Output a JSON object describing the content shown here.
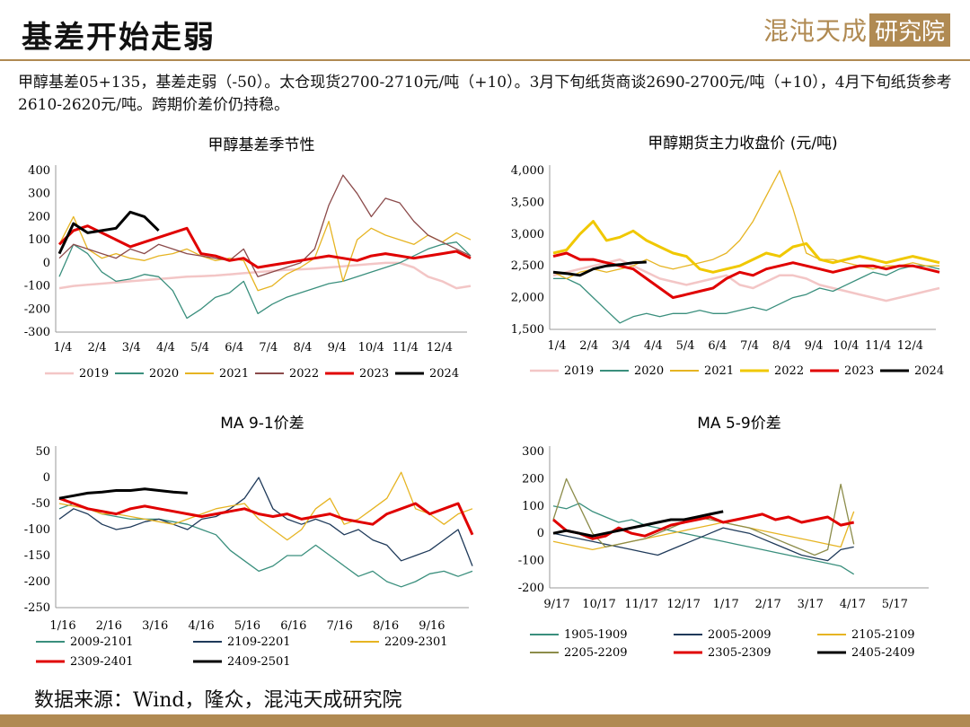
{
  "header": {
    "title": "基差开始走弱",
    "logo_text": "混沌天成",
    "logo_box": "研究院"
  },
  "description": "甲醇基差05+135，基差走弱（-50）。太仓现货2700-2710元/吨（+10）。3月下旬纸货商谈2690-2700元/吨（+10），4月下旬纸货参考2610-2620元/吨。跨期价差价仍持稳。",
  "source": "数据来源：Wind，隆众，混沌天成研究院",
  "colors": {
    "accent": "#b08a52"
  },
  "chart_data": [
    {
      "type": "line",
      "title": "甲醇基差季节性",
      "x_ticks": [
        "1/4",
        "2/4",
        "3/4",
        "4/4",
        "5/4",
        "6/4",
        "7/4",
        "8/4",
        "9/4",
        "10/4",
        "11/4",
        "12/4"
      ],
      "y_ticks": [
        "400",
        "300",
        "200",
        "100",
        "0",
        "-100",
        "-200",
        "-300"
      ],
      "ylim": [
        -300,
        400
      ],
      "grid": false,
      "legend": "bottom",
      "series": [
        {
          "name": "2019",
          "color": "#f3c6c6",
          "width": 2.5,
          "values": [
            -110,
            -100,
            -95,
            -90,
            -85,
            -80,
            -75,
            -70,
            -65,
            -60,
            -58,
            -55,
            -50,
            -45,
            -40,
            -35,
            -30,
            -28,
            -25,
            -20,
            -15,
            -10,
            -5,
            0,
            0,
            -20,
            -60,
            -80,
            -110,
            -100
          ]
        },
        {
          "name": "2020",
          "color": "#3a8f7d",
          "width": 1.3,
          "values": [
            -60,
            80,
            40,
            -40,
            -80,
            -70,
            -50,
            -60,
            -120,
            -240,
            -200,
            -150,
            -130,
            -80,
            -220,
            -180,
            -150,
            -130,
            -110,
            -90,
            -80,
            -60,
            -40,
            -20,
            0,
            30,
            60,
            80,
            90,
            30
          ]
        },
        {
          "name": "2021",
          "color": "#e6b422",
          "width": 1.3,
          "values": [
            80,
            200,
            60,
            20,
            40,
            20,
            10,
            30,
            40,
            60,
            30,
            10,
            20,
            10,
            -120,
            -100,
            -50,
            -20,
            20,
            180,
            -80,
            100,
            150,
            120,
            100,
            80,
            120,
            90,
            130,
            100
          ]
        },
        {
          "name": "2022",
          "color": "#8b4a4a",
          "width": 1.3,
          "values": [
            20,
            80,
            60,
            40,
            20,
            60,
            40,
            80,
            60,
            40,
            30,
            20,
            10,
            60,
            -60,
            -40,
            -20,
            0,
            60,
            250,
            380,
            300,
            200,
            280,
            260,
            180,
            120,
            90,
            60,
            30
          ]
        },
        {
          "name": "2023",
          "color": "#e00000",
          "width": 3,
          "values": [
            80,
            140,
            160,
            130,
            100,
            70,
            90,
            110,
            130,
            150,
            40,
            30,
            10,
            20,
            -20,
            -10,
            0,
            10,
            20,
            30,
            20,
            10,
            30,
            40,
            30,
            20,
            30,
            40,
            50,
            20
          ]
        },
        {
          "name": "2024",
          "color": "#000000",
          "width": 3,
          "values": [
            40,
            170,
            130,
            140,
            150,
            220,
            200,
            140
          ]
        }
      ]
    },
    {
      "type": "line",
      "title": "甲醇期货主力收盘价 (元/吨)",
      "x_ticks": [
        "1/4",
        "2/4",
        "3/4",
        "4/4",
        "5/4",
        "6/4",
        "7/4",
        "8/4",
        "9/4",
        "10/4",
        "11/4",
        "12/4"
      ],
      "y_ticks": [
        "4,000",
        "3,500",
        "3,000",
        "2,500",
        "2,000",
        "1,500"
      ],
      "ylim": [
        1500,
        4000
      ],
      "grid": false,
      "legend": "bottom",
      "series": [
        {
          "name": "2019",
          "color": "#f3c6c6",
          "width": 2.5,
          "values": [
            2350,
            2400,
            2450,
            2500,
            2550,
            2600,
            2500,
            2400,
            2300,
            2250,
            2200,
            2250,
            2300,
            2350,
            2200,
            2150,
            2250,
            2350,
            2350,
            2300,
            2200,
            2150,
            2100,
            2050,
            2000,
            1950,
            2000,
            2050,
            2100,
            2150
          ]
        },
        {
          "name": "2020",
          "color": "#3a8f7d",
          "width": 1.3,
          "values": [
            2300,
            2300,
            2200,
            2000,
            1800,
            1600,
            1700,
            1750,
            1700,
            1750,
            1750,
            1800,
            1750,
            1750,
            1800,
            1850,
            1800,
            1900,
            2000,
            2050,
            2150,
            2100,
            2200,
            2300,
            2400,
            2350,
            2450,
            2500,
            2500,
            2450
          ]
        },
        {
          "name": "2021",
          "color": "#e6b422",
          "width": 1.3,
          "values": [
            2400,
            2300,
            2400,
            2450,
            2400,
            2450,
            2500,
            2600,
            2500,
            2450,
            2500,
            2550,
            2600,
            2700,
            2900,
            3200,
            3600,
            4000,
            3400,
            2700,
            2600,
            2600,
            2550,
            2500,
            2450,
            2500,
            2500,
            2550,
            2500,
            2500
          ]
        },
        {
          "name": "2022",
          "color": "#f0c800",
          "width": 3,
          "values": [
            2700,
            2750,
            3000,
            3200,
            2900,
            2950,
            3050,
            2900,
            2800,
            2700,
            2650,
            2450,
            2400,
            2450,
            2500,
            2600,
            2700,
            2650,
            2800,
            2850,
            2600,
            2550,
            2600,
            2650,
            2600,
            2550,
            2600,
            2650,
            2600,
            2550
          ]
        },
        {
          "name": "2023",
          "color": "#e00000",
          "width": 3,
          "values": [
            2650,
            2700,
            2600,
            2600,
            2550,
            2500,
            2450,
            2300,
            2150,
            2000,
            2050,
            2100,
            2150,
            2300,
            2400,
            2350,
            2450,
            2500,
            2550,
            2500,
            2450,
            2400,
            2450,
            2500,
            2500,
            2450,
            2500,
            2500,
            2450,
            2400
          ]
        },
        {
          "name": "2024",
          "color": "#000000",
          "width": 3,
          "values": [
            2400,
            2380,
            2350,
            2450,
            2500,
            2520,
            2550,
            2560
          ]
        }
      ]
    },
    {
      "type": "line",
      "title": "MA 9-1价差",
      "x_ticks": [
        "1/16",
        "2/16",
        "3/16",
        "4/16",
        "5/16",
        "6/16",
        "7/16",
        "8/16",
        "9/16"
      ],
      "y_ticks": [
        "50",
        "0",
        "-50",
        "-100",
        "-150",
        "-200",
        "-250"
      ],
      "ylim": [
        -250,
        50
      ],
      "grid": false,
      "legend": "bottom",
      "series": [
        {
          "name": "2009-2101",
          "color": "#3a8f7d",
          "width": 1.3,
          "values": [
            -60,
            -50,
            -60,
            -70,
            -75,
            -80,
            -80,
            -80,
            -85,
            -90,
            -100,
            -110,
            -140,
            -160,
            -180,
            -170,
            -150,
            -150,
            -130,
            -150,
            -170,
            -190,
            -180,
            -200,
            -210,
            -200,
            -185,
            -180,
            -190,
            -180
          ]
        },
        {
          "name": "2109-2201",
          "color": "#1f3a5a",
          "width": 1.3,
          "values": [
            -80,
            -60,
            -70,
            -90,
            -100,
            -95,
            -85,
            -80,
            -90,
            -100,
            -80,
            -75,
            -60,
            -40,
            0,
            -60,
            -80,
            -90,
            -80,
            -90,
            -110,
            -100,
            -120,
            -130,
            -160,
            -150,
            -140,
            -120,
            -100,
            -170
          ]
        },
        {
          "name": "2209-2301",
          "color": "#e6b422",
          "width": 1.3,
          "values": [
            -50,
            -55,
            -60,
            -70,
            -70,
            -75,
            -80,
            -85,
            -90,
            -80,
            -70,
            -60,
            -55,
            -50,
            -80,
            -100,
            -120,
            -100,
            -60,
            -40,
            -90,
            -80,
            -60,
            -40,
            10,
            -60,
            -70,
            -90,
            -70,
            -60
          ]
        },
        {
          "name": "2309-2401",
          "color": "#e00000",
          "width": 3,
          "values": [
            -40,
            -50,
            -60,
            -65,
            -70,
            -60,
            -55,
            -60,
            -65,
            -70,
            -75,
            -70,
            -65,
            -60,
            -70,
            -75,
            -70,
            -80,
            -75,
            -70,
            -80,
            -85,
            -90,
            -70,
            -60,
            -50,
            -70,
            -60,
            -50,
            -110
          ]
        },
        {
          "name": "2409-2501",
          "color": "#000000",
          "width": 3,
          "values": [
            -40,
            -35,
            -30,
            -28,
            -25,
            -25,
            -22,
            -25,
            -28,
            -30
          ]
        }
      ]
    },
    {
      "type": "line",
      "title": "MA 5-9价差",
      "x_ticks": [
        "9/17",
        "10/17",
        "11/17",
        "12/17",
        "1/17",
        "2/17",
        "3/17",
        "4/17",
        "5/17"
      ],
      "y_ticks": [
        "300",
        "200",
        "100",
        "0",
        "-100",
        "-200"
      ],
      "ylim": [
        -200,
        300
      ],
      "grid": false,
      "legend": "bottom",
      "series": [
        {
          "name": "1905-1909",
          "color": "#3a8f7d",
          "width": 1.3,
          "values": [
            100,
            90,
            110,
            80,
            60,
            40,
            50,
            30,
            20,
            10,
            0,
            -10,
            -20,
            -30,
            -40,
            -50,
            -60,
            -70,
            -80,
            -90,
            -100,
            -110,
            -120,
            -150
          ]
        },
        {
          "name": "2005-2009",
          "color": "#1f3a5a",
          "width": 1.3,
          "values": [
            0,
            -10,
            -20,
            -30,
            -40,
            -50,
            -60,
            -70,
            -80,
            -60,
            -40,
            -20,
            0,
            20,
            10,
            0,
            -20,
            -40,
            -60,
            -80,
            -90,
            -100,
            -60,
            -50
          ]
        },
        {
          "name": "2105-2109",
          "color": "#e6b422",
          "width": 1.3,
          "values": [
            -30,
            -40,
            -50,
            -60,
            -50,
            -40,
            -30,
            -20,
            -10,
            0,
            10,
            20,
            30,
            40,
            30,
            20,
            10,
            0,
            -10,
            -20,
            -30,
            -40,
            -50,
            80
          ]
        },
        {
          "name": "2205-2209",
          "color": "#8c8c4a",
          "width": 1.3,
          "values": [
            50,
            200,
            100,
            0,
            -50,
            -40,
            -30,
            -20,
            0,
            20,
            40,
            60,
            50,
            40,
            30,
            20,
            0,
            -20,
            -40,
            -60,
            -80,
            -60,
            180,
            -40
          ]
        },
        {
          "name": "2305-2309",
          "color": "#e00000",
          "width": 3,
          "values": [
            50,
            10,
            0,
            -20,
            -10,
            20,
            0,
            -10,
            10,
            30,
            40,
            50,
            60,
            40,
            50,
            60,
            70,
            50,
            60,
            40,
            50,
            60,
            30,
            40
          ]
        },
        {
          "name": "2405-2409",
          "color": "#000000",
          "width": 3,
          "values": [
            0,
            10,
            0,
            -10,
            0,
            10,
            20,
            30,
            40,
            50,
            50,
            60,
            70,
            80
          ]
        }
      ]
    }
  ]
}
